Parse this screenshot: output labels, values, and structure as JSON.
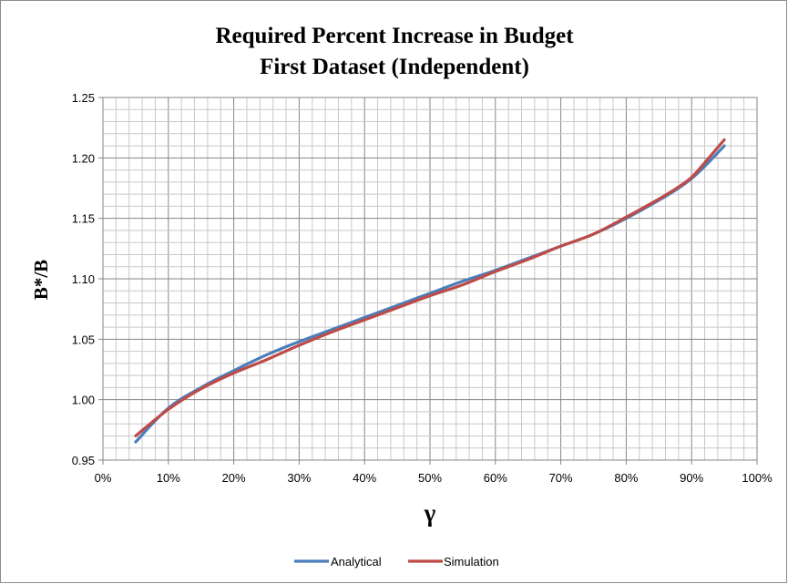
{
  "chart_data": {
    "type": "line",
    "title": [
      "Required Percent Increase in Budget",
      "First Dataset (Independent)"
    ],
    "xlabel": "γ",
    "ylabel": "B*/B",
    "xlim": [
      0,
      100
    ],
    "ylim": [
      0.95,
      1.25
    ],
    "x_ticks": [
      "0%",
      "10%",
      "20%",
      "30%",
      "40%",
      "50%",
      "60%",
      "70%",
      "80%",
      "90%",
      "100%"
    ],
    "y_ticks": [
      "0.95",
      "1.00",
      "1.05",
      "1.10",
      "1.15",
      "1.20",
      "1.25"
    ],
    "grid": true,
    "legend": "bottom",
    "series": [
      {
        "name": "Analytical",
        "color": "#4a7ebb",
        "x": [
          5,
          10,
          15,
          20,
          25,
          30,
          35,
          40,
          45,
          50,
          55,
          60,
          65,
          70,
          75,
          80,
          85,
          88,
          90,
          92,
          95
        ],
        "y": [
          0.965,
          0.993,
          1.01,
          1.024,
          1.037,
          1.048,
          1.058,
          1.068,
          1.078,
          1.088,
          1.098,
          1.107,
          1.117,
          1.127,
          1.137,
          1.15,
          1.165,
          1.175,
          1.183,
          1.193,
          1.21
        ]
      },
      {
        "name": "Simulation",
        "color": "#be4b48",
        "x": [
          5,
          10,
          15,
          20,
          25,
          30,
          35,
          40,
          45,
          50,
          55,
          60,
          65,
          70,
          75,
          80,
          85,
          88,
          90,
          92,
          95
        ],
        "y": [
          0.97,
          0.992,
          1.009,
          1.022,
          1.033,
          1.045,
          1.056,
          1.066,
          1.076,
          1.086,
          1.095,
          1.106,
          1.116,
          1.127,
          1.137,
          1.151,
          1.166,
          1.176,
          1.184,
          1.196,
          1.215
        ]
      }
    ]
  }
}
